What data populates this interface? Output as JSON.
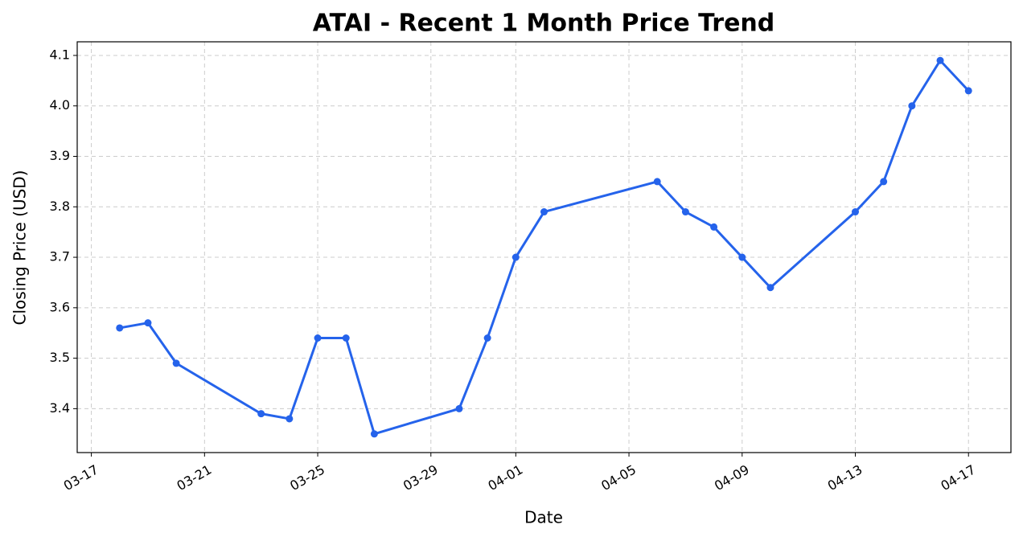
{
  "chart_data": {
    "type": "line",
    "title": "ATAI - Recent 1 Month Price Trend",
    "x_label": "Date",
    "y_label": "Closing Price (USD)",
    "x": [
      "03-18",
      "03-19",
      "03-20",
      "03-23",
      "03-24",
      "03-25",
      "03-26",
      "03-27",
      "03-30",
      "03-31",
      "04-01",
      "04-02",
      "04-06",
      "04-07",
      "04-08",
      "04-09",
      "04-10",
      "04-13",
      "04-14",
      "04-15",
      "04-16",
      "04-17"
    ],
    "values": [
      3.56,
      3.57,
      3.49,
      3.39,
      3.38,
      3.54,
      3.54,
      3.35,
      3.4,
      3.54,
      3.7,
      3.79,
      3.85,
      3.79,
      3.76,
      3.7,
      3.64,
      3.79,
      3.85,
      4.0,
      4.09,
      4.03
    ],
    "color": "#2563eb",
    "xticks": [
      "03-17",
      "03-21",
      "03-25",
      "03-29",
      "04-01",
      "04-05",
      "04-09",
      "04-13",
      "04-17"
    ],
    "ylim": [
      3.313,
      4.127
    ],
    "yticks": [
      3.4,
      3.5,
      3.6,
      3.7,
      3.8,
      3.9,
      {
        "value": 4,
        "label": "4.0"
      },
      4.1
    ],
    "grid": true
  }
}
